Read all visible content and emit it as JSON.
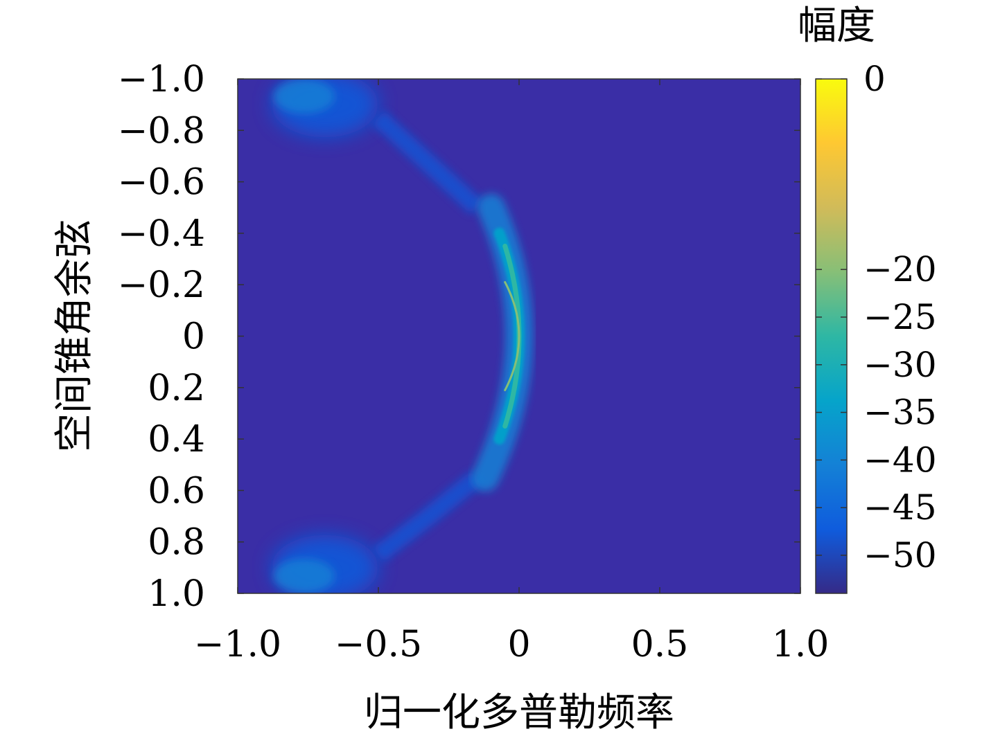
{
  "chart_data": {
    "type": "heatmap",
    "title": "",
    "xlabel": "归一化多普勒频率",
    "ylabel": "空间锥角余弦",
    "xlim": [
      -1.0,
      1.0
    ],
    "ylim": [
      -1.0,
      1.0
    ],
    "y_direction": "top-to-bottom increasing",
    "x_ticks": [
      "−1.0",
      "−0.5",
      "0",
      "0.5",
      "1.0"
    ],
    "x_tick_values": [
      -1.0,
      -0.5,
      0,
      0.5,
      1.0
    ],
    "y_ticks": [
      "−1.0",
      "−0.8",
      "−0.6",
      "−0.4",
      "−0.2",
      "0",
      "0.2",
      "0.4",
      "0.6",
      "0.8",
      "1.0"
    ],
    "y_tick_values": [
      -1.0,
      -0.8,
      -0.6,
      -0.4,
      -0.2,
      0,
      0.2,
      0.4,
      0.6,
      0.8,
      1.0
    ],
    "colorbar": {
      "label": "幅度",
      "range": [
        -54,
        0
      ],
      "tick_labels": [
        "0",
        "−20",
        "−25",
        "−30",
        "−35",
        "−40",
        "−45",
        "−50"
      ],
      "tick_values": [
        0,
        -20,
        -25,
        -30,
        -35,
        -40,
        -45,
        -50
      ],
      "colormap": "parula",
      "stops": [
        "#352a87",
        "#0f5cdd",
        "#1481d6",
        "#06a4ca",
        "#2eb7a4",
        "#87bf77",
        "#d1bb59",
        "#fec832",
        "#f9fb0e"
      ]
    },
    "background_level": -54,
    "features": [
      {
        "name": "main clutter ridge",
        "shape": "arc",
        "doppler_at_center": 0.0,
        "doppler_at_edges": -0.05,
        "cone_range": [
          -0.35,
          0.35
        ],
        "peak_level": -18
      },
      {
        "name": "ridge sidelobe halo",
        "cone_range": [
          -0.5,
          0.55
        ],
        "level": -42
      },
      {
        "name": "upper-left sidelobe",
        "doppler_range": [
          -0.88,
          -0.5
        ],
        "cone_range": [
          -1.0,
          -0.8
        ],
        "level": -44
      },
      {
        "name": "lower-left sidelobe",
        "doppler_range": [
          -0.88,
          -0.5
        ],
        "cone_range": [
          0.8,
          1.0
        ],
        "level": -44
      }
    ]
  }
}
